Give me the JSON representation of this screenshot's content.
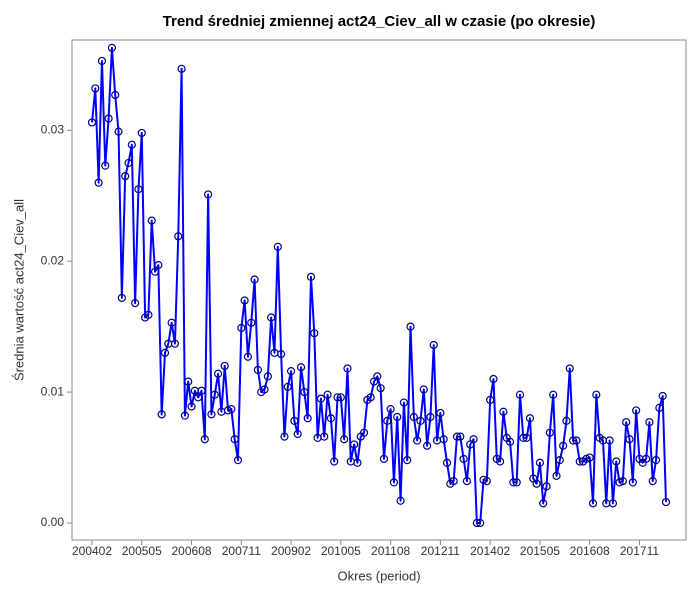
{
  "chart_data": {
    "type": "line",
    "title": "Trend średniej zmiennej act24_Ciev_all w czasie (po okresie)",
    "x_label": "Okres (period)",
    "y_label": "Średnia wartość act24_Ciev_all",
    "categories": [
      "200402",
      null,
      null,
      null,
      null,
      null,
      null,
      null,
      null,
      null,
      null,
      null,
      null,
      null,
      null,
      "200505",
      null,
      null,
      null,
      null,
      null,
      null,
      null,
      null,
      null,
      null,
      null,
      null,
      null,
      null,
      "200608",
      null,
      null,
      null,
      null,
      null,
      null,
      null,
      null,
      null,
      null,
      null,
      null,
      null,
      null,
      "200711",
      null,
      null,
      null,
      null,
      null,
      null,
      null,
      null,
      null,
      null,
      null,
      null,
      null,
      null,
      "200902",
      null,
      null,
      null,
      null,
      null,
      null,
      null,
      null,
      null,
      null,
      null,
      null,
      null,
      null,
      "201005",
      null,
      null,
      null,
      null,
      null,
      null,
      null,
      null,
      null,
      null,
      null,
      null,
      null,
      null,
      "201108",
      null,
      null,
      null,
      null,
      null,
      null,
      null,
      null,
      null,
      null,
      null,
      null,
      null,
      null,
      "201211",
      null,
      null,
      null,
      null,
      null,
      null,
      null,
      null,
      null,
      null,
      null,
      null,
      null,
      null,
      "201402",
      null,
      null,
      null,
      null,
      null,
      null,
      null,
      null,
      null,
      null,
      null,
      null,
      null,
      null,
      "201505",
      null,
      null,
      null,
      null,
      null,
      null,
      null,
      null,
      null,
      null,
      null,
      null,
      null,
      null,
      "201608",
      null,
      null,
      null,
      null,
      null,
      null,
      null,
      null,
      null,
      null,
      null,
      null,
      null,
      null,
      "201711",
      null,
      null,
      null,
      null,
      null,
      null,
      null,
      null
    ],
    "series": [
      {
        "name": "act24_Ciev_all",
        "color": "#0000ff",
        "marker_color": "#00008b",
        "values": [
          0.0306,
          0.0332,
          0.026,
          0.0353,
          0.0273,
          0.0309,
          0.0363,
          0.0327,
          0.0299,
          0.0172,
          0.0265,
          0.0275,
          0.0289,
          0.0168,
          0.0255,
          0.0298,
          0.0157,
          0.0159,
          0.0231,
          0.0192,
          0.0197,
          0.0083,
          0.013,
          0.0137,
          0.0153,
          0.0137,
          0.0219,
          0.0347,
          0.0082,
          0.0108,
          0.0089,
          0.0101,
          0.0096,
          0.0101,
          0.0064,
          0.0251,
          0.0083,
          0.0098,
          0.0114,
          0.0085,
          0.012,
          0.0086,
          0.0087,
          0.0064,
          0.0048,
          0.0149,
          0.017,
          0.0127,
          0.0153,
          0.0186,
          0.0117,
          0.01,
          0.0102,
          0.0112,
          0.0157,
          0.013,
          0.0211,
          0.0129,
          0.0066,
          0.0104,
          0.0116,
          0.0078,
          0.0068,
          0.0119,
          0.01,
          0.008,
          0.0188,
          0.0145,
          0.0065,
          0.0095,
          0.0066,
          0.0098,
          0.008,
          0.0047,
          0.0096,
          0.0096,
          0.0064,
          0.0118,
          0.0047,
          0.006,
          0.0046,
          0.0066,
          0.0069,
          0.0094,
          0.0096,
          0.0108,
          0.0112,
          0.0103,
          0.0049,
          0.0078,
          0.0087,
          0.0031,
          0.0081,
          0.0017,
          0.0092,
          0.0048,
          0.015,
          0.0081,
          0.0063,
          0.0078,
          0.0102,
          0.0059,
          0.0081,
          0.0136,
          0.0063,
          0.0084,
          0.0064,
          0.0046,
          0.003,
          0.0032,
          0.0066,
          0.0066,
          0.0049,
          0.0032,
          0.006,
          0.0064,
          0,
          0,
          0.0033,
          0.0032,
          0.0094,
          0.011,
          0.0049,
          0.0047,
          0.0085,
          0.0065,
          0.0062,
          0.0031,
          0.0031,
          0.0098,
          0.0065,
          0.0065,
          0.008,
          0.0034,
          0.003,
          0.0046,
          0.0015,
          0.0028,
          0.0069,
          0.0098,
          0.0036,
          0.0048,
          0.0059,
          0.0078,
          0.0118,
          0.0063,
          0.0063,
          0.0047,
          0.0047,
          0.0049,
          0.005,
          0.0015,
          0.0098,
          0.0065,
          0.0063,
          0.0015,
          0.0063,
          0.0015,
          0.0047,
          0.0031,
          0.0032,
          0.0077,
          0.0064,
          0.0031,
          0.0086,
          0.0049,
          0.0046,
          0.0049,
          0.0077,
          0.0032,
          0.0048,
          0.0088,
          0.0097,
          0.0016
        ]
      }
    ],
    "ylim": [
      -0.0013,
      0.0369
    ],
    "yticks": [
      {
        "value": 0,
        "label": "0.00"
      },
      0.01,
      0.02,
      0.03
    ],
    "grid": false
  }
}
